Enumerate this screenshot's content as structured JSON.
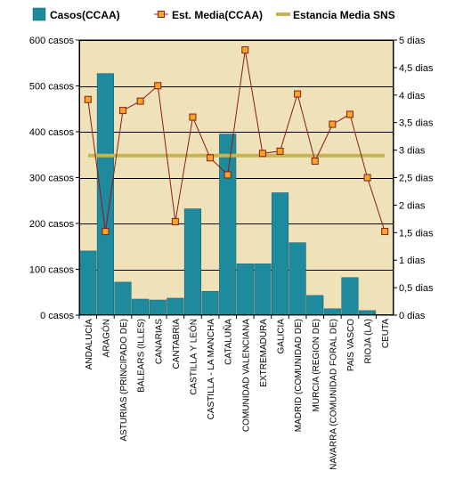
{
  "chart_data": {
    "type": "bar",
    "legend_position": "top",
    "grid": true,
    "categories": [
      "ANDALUCÍA",
      "ARAGÓN",
      "ASTURIAS (PRINCIPADO DE)",
      "BALEARS (ILLES)",
      "CANARIAS",
      "CANTABRIA",
      "CASTILLA Y LEÓN",
      "CASTILLA - LA MANCHA",
      "CATALUÑA",
      "COMUNIDAD VALENCIANA",
      "EXTREMADURA",
      "GALICIA",
      "MADRID (COMUNIDAD DE)",
      "MURCIA (REGION DE)",
      "NAVARRA (COMUNIDAD FORAL DE)",
      "PAIS VASCO",
      "RIOJA (LA)",
      "CEUTA"
    ],
    "y_left": {
      "ylim": [
        0,
        600
      ],
      "ticks": [
        0,
        100,
        200,
        300,
        400,
        500,
        600
      ],
      "tick_labels": [
        "0 casos",
        "100 casos",
        "200 casos",
        "300 casos",
        "400 casos",
        "500 casos",
        "600 casos"
      ]
    },
    "y_right": {
      "ylim": [
        0,
        5
      ],
      "ticks": [
        0,
        0.5,
        1,
        1.5,
        2,
        2.5,
        3,
        3.5,
        4,
        4.5,
        5
      ],
      "tick_labels": [
        "0 dias",
        "0,5 dias",
        "1 dias",
        "1,5 dias",
        "2 dias",
        "2,5 dias",
        "3 dias",
        "3,5 dias",
        "4 dias",
        "4,5 dias",
        "5 dias"
      ]
    },
    "series": [
      {
        "name": "Casos(CCAA)",
        "type": "bar",
        "axis": "left",
        "color": "#1e8a9e",
        "values": [
          140,
          527,
          72,
          35,
          33,
          37,
          232,
          52,
          395,
          112,
          112,
          267,
          158,
          43,
          14,
          82,
          10,
          0
        ]
      },
      {
        "name": "Est. Media(CCAA)",
        "type": "line",
        "axis": "right",
        "line_color": "#8b1a1a",
        "marker_color": "#f5a623",
        "values": [
          3.92,
          1.52,
          3.72,
          3.89,
          4.17,
          1.7,
          3.6,
          2.86,
          2.55,
          4.82,
          2.94,
          2.98,
          4.02,
          2.8,
          3.47,
          3.65,
          2.5,
          1.52
        ]
      },
      {
        "name": "Estancia Media SNS",
        "type": "hline",
        "axis": "right",
        "color": "#c8b450",
        "value": 2.9
      }
    ]
  }
}
